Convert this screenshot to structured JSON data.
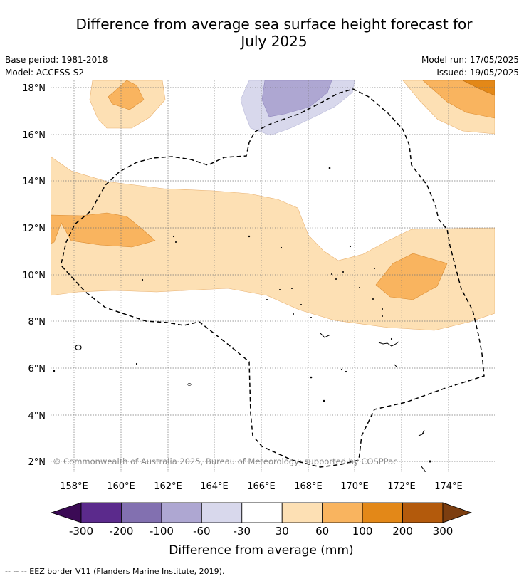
{
  "title_line1": "Difference from average sea surface height forecast for",
  "title_line2": "July 2025",
  "meta_left": {
    "base_period": "Base period: 1981-2018",
    "model": "Model: ACCESS-S2"
  },
  "meta_right": {
    "model_run": "Model run: 17/05/2025",
    "issued": "Issued: 19/05/2025"
  },
  "map": {
    "lat_ticks": [
      "2°N",
      "4°N",
      "6°N",
      "8°N",
      "10°N",
      "12°N",
      "14°N",
      "16°N",
      "18°N"
    ],
    "lon_ticks": [
      "158°E",
      "160°E",
      "162°E",
      "164°E",
      "166°E",
      "168°E",
      "170°E",
      "172°E",
      "174°E"
    ],
    "copyright": "© Commonwealth of Australia 2025, Bureau of Meteorology; supported by COSPPac"
  },
  "colorbar": {
    "label": "Difference from average (mm)",
    "ticks": [
      "-300",
      "-200",
      "-100",
      "-60",
      "-30",
      "30",
      "60",
      "100",
      "200",
      "300"
    ],
    "colors": [
      "#3b0a55",
      "#5b2a8c",
      "#8270b0",
      "#aea7d2",
      "#d8d8ec",
      "#ffffff",
      "#fde0b4",
      "#f9b45f",
      "#e38818",
      "#b35a0c",
      "#7c3e10"
    ]
  },
  "footer": "--  --  -- EEZ border V11 (Flanders Marine Institute, 2019)."
}
